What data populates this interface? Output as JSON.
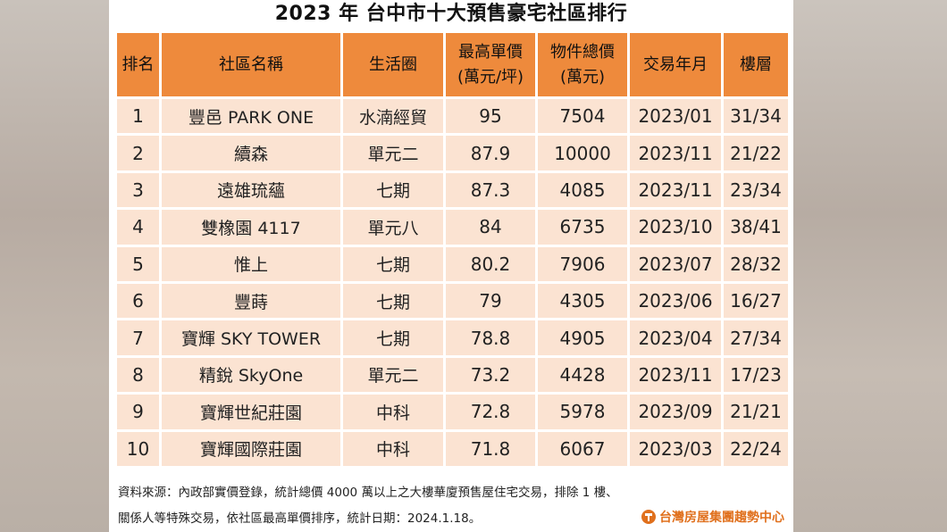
{
  "title": "2023 年  台中市十大預售豪宅社區排行",
  "columns": {
    "rank": "排名",
    "name": "社區名稱",
    "area": "生活圈",
    "price_top": "最高單價",
    "price_unit": "(萬元/坪)",
    "total_top": "物件總價",
    "total_unit": "(萬元)",
    "date": "交易年月",
    "floor": "樓層"
  },
  "rows": [
    {
      "rank": "1",
      "name": "豐邑 PARK ONE",
      "area": "水湳經貿",
      "price": "95",
      "total": "7504",
      "date": "2023/01",
      "floor": "31/34"
    },
    {
      "rank": "2",
      "name": "續森",
      "area": "單元二",
      "price": "87.9",
      "total": "10000",
      "date": "2023/11",
      "floor": "21/22"
    },
    {
      "rank": "3",
      "name": "遠雄琉蘊",
      "area": "七期",
      "price": "87.3",
      "total": "4085",
      "date": "2023/11",
      "floor": "23/34"
    },
    {
      "rank": "4",
      "name": "雙橡園 4117",
      "area": "單元八",
      "price": "84",
      "total": "6735",
      "date": "2023/10",
      "floor": "38/41"
    },
    {
      "rank": "5",
      "name": "惟上",
      "area": "七期",
      "price": "80.2",
      "total": "7906",
      "date": "2023/07",
      "floor": "28/32"
    },
    {
      "rank": "6",
      "name": "豐蒔",
      "area": "七期",
      "price": "79",
      "total": "4305",
      "date": "2023/06",
      "floor": "16/27"
    },
    {
      "rank": "7",
      "name": "寶輝 SKY TOWER",
      "area": "七期",
      "price": "78.8",
      "total": "4905",
      "date": "2023/04",
      "floor": "27/34"
    },
    {
      "rank": "8",
      "name": "精銳 SkyOne",
      "area": "單元二",
      "price": "73.2",
      "total": "4428",
      "date": "2023/11",
      "floor": "17/23"
    },
    {
      "rank": "9",
      "name": "寶輝世紀莊園",
      "area": "中科",
      "price": "72.8",
      "total": "5978",
      "date": "2023/09",
      "floor": "21/21"
    },
    {
      "rank": "10",
      "name": "寶輝國際莊園",
      "area": "中科",
      "price": "71.8",
      "total": "6067",
      "date": "2023/03",
      "floor": "22/24"
    }
  ],
  "footer": {
    "line1": "資料來源：內政部實價登錄，統計總價 4000 萬以上之大樓華廈預售屋住宅交易，排除 1 樓、",
    "line2": "關係人等特殊交易，依社區最高單價排序，統計日期：2024.1.18。"
  },
  "logo": {
    "text": "台灣房屋集團趨勢中心",
    "icon": "taiwan-realty-logo-icon",
    "color": "#e0701d"
  },
  "colors": {
    "header_bg": "#ee8a3c",
    "cell_bg": "#fbe3d2"
  }
}
